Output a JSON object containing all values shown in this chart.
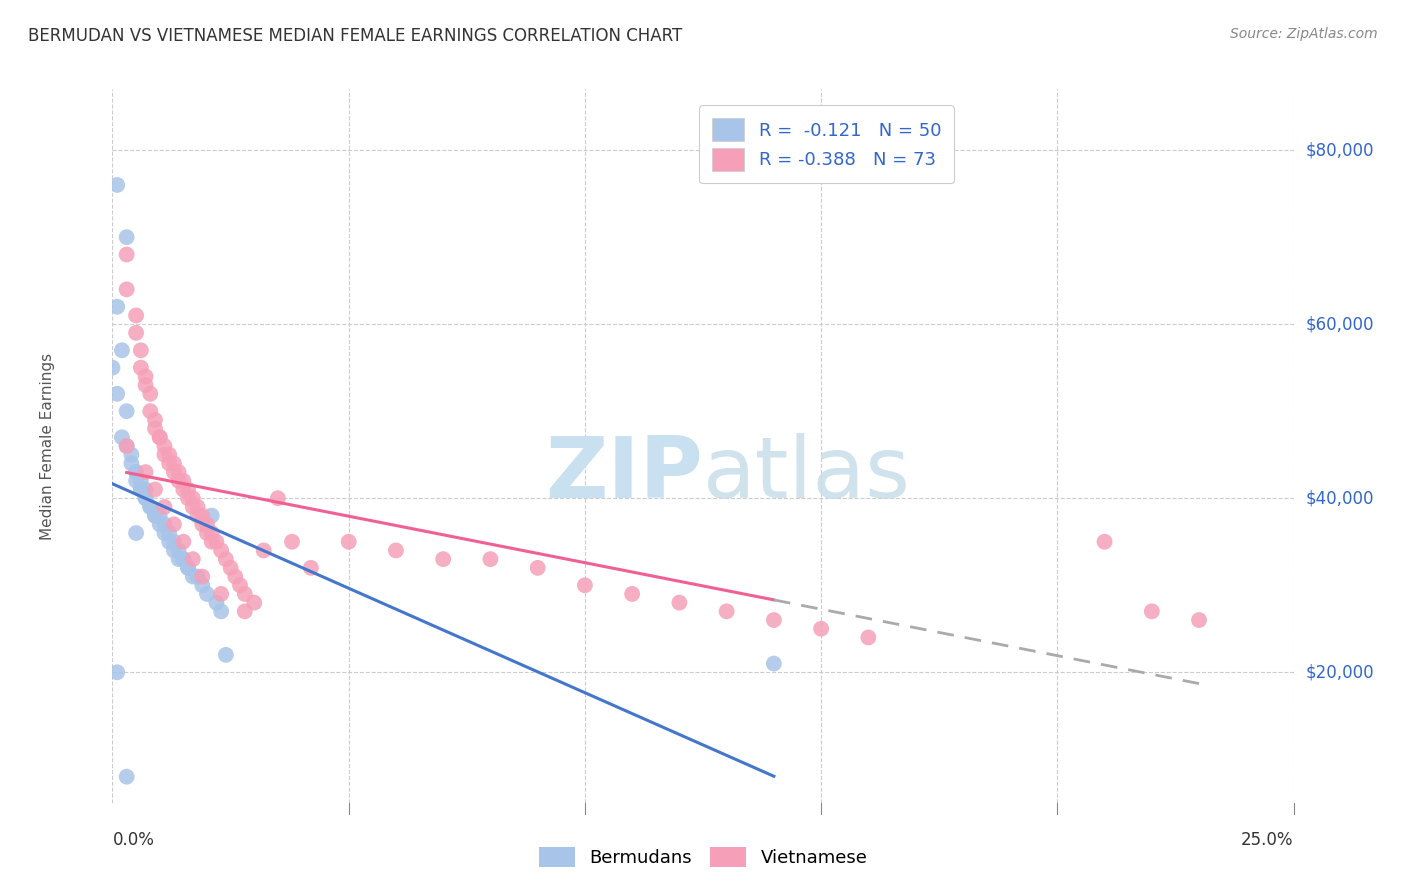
{
  "title": "BERMUDAN VS VIETNAMESE MEDIAN FEMALE EARNINGS CORRELATION CHART",
  "source": "Source: ZipAtlas.com",
  "ylabel": "Median Female Earnings",
  "ytick_labels": [
    "$20,000",
    "$40,000",
    "$60,000",
    "$80,000"
  ],
  "ytick_values": [
    20000,
    40000,
    60000,
    80000
  ],
  "xmin": 0.0,
  "xmax": 0.25,
  "ymin": 5000,
  "ymax": 87000,
  "bermudans_color": "#a8c4e8",
  "vietnamese_color": "#f5a0b8",
  "bermudans_line_color": "#4477cc",
  "vietnamese_line_color": "#f06090",
  "dash_line_color": "#aaaaaa",
  "bermudans_R": -0.121,
  "bermudans_N": 50,
  "vietnamese_R": -0.388,
  "vietnamese_N": 73,
  "legend_R_color": "#3366cc",
  "title_color": "#333333",
  "grid_color": "#cccccc",
  "watermark_ZIP_color": "#c8e0f0",
  "watermark_atlas_color": "#c8dde8",
  "source_color": "#888888",
  "ylabel_color": "#555555",
  "ytick_color": "#3366cc",
  "bottom_label_color": "#333333",
  "bermudans_x": [
    0.001,
    0.003,
    0.001,
    0.002,
    0.0,
    0.001,
    0.003,
    0.002,
    0.003,
    0.004,
    0.004,
    0.005,
    0.005,
    0.006,
    0.005,
    0.006,
    0.006,
    0.007,
    0.007,
    0.007,
    0.008,
    0.008,
    0.009,
    0.009,
    0.01,
    0.01,
    0.011,
    0.011,
    0.012,
    0.012,
    0.013,
    0.013,
    0.014,
    0.014,
    0.015,
    0.015,
    0.016,
    0.016,
    0.017,
    0.018,
    0.019,
    0.02,
    0.021,
    0.022,
    0.023,
    0.024,
    0.14,
    0.001,
    0.003,
    0.005
  ],
  "bermudans_y": [
    76000,
    70000,
    62000,
    57000,
    55000,
    52000,
    50000,
    47000,
    46000,
    45000,
    44000,
    43000,
    43000,
    42000,
    42000,
    41000,
    41000,
    41000,
    40000,
    40000,
    39000,
    39000,
    38000,
    38000,
    38000,
    37000,
    37000,
    36000,
    36000,
    35000,
    35000,
    34000,
    34000,
    33000,
    33000,
    33000,
    32000,
    32000,
    31000,
    31000,
    30000,
    29000,
    38000,
    28000,
    27000,
    22000,
    21000,
    20000,
    8000,
    36000
  ],
  "vietnamese_x": [
    0.003,
    0.003,
    0.005,
    0.005,
    0.006,
    0.006,
    0.007,
    0.007,
    0.008,
    0.008,
    0.009,
    0.009,
    0.01,
    0.01,
    0.011,
    0.011,
    0.012,
    0.012,
    0.013,
    0.013,
    0.014,
    0.014,
    0.015,
    0.015,
    0.016,
    0.016,
    0.017,
    0.017,
    0.018,
    0.018,
    0.019,
    0.019,
    0.02,
    0.02,
    0.021,
    0.021,
    0.022,
    0.023,
    0.024,
    0.025,
    0.026,
    0.027,
    0.028,
    0.03,
    0.032,
    0.035,
    0.038,
    0.042,
    0.05,
    0.06,
    0.07,
    0.08,
    0.09,
    0.1,
    0.11,
    0.12,
    0.13,
    0.14,
    0.15,
    0.16,
    0.003,
    0.007,
    0.009,
    0.011,
    0.013,
    0.015,
    0.017,
    0.019,
    0.023,
    0.028,
    0.21,
    0.22,
    0.23
  ],
  "vietnamese_y": [
    68000,
    64000,
    61000,
    59000,
    57000,
    55000,
    54000,
    53000,
    52000,
    50000,
    49000,
    48000,
    47000,
    47000,
    46000,
    45000,
    45000,
    44000,
    44000,
    43000,
    43000,
    42000,
    42000,
    41000,
    41000,
    40000,
    40000,
    39000,
    39000,
    38000,
    38000,
    37000,
    37000,
    36000,
    36000,
    35000,
    35000,
    34000,
    33000,
    32000,
    31000,
    30000,
    29000,
    28000,
    34000,
    40000,
    35000,
    32000,
    35000,
    34000,
    33000,
    33000,
    32000,
    30000,
    29000,
    28000,
    27000,
    26000,
    25000,
    24000,
    46000,
    43000,
    41000,
    39000,
    37000,
    35000,
    33000,
    31000,
    29000,
    27000,
    35000,
    27000,
    26000
  ]
}
